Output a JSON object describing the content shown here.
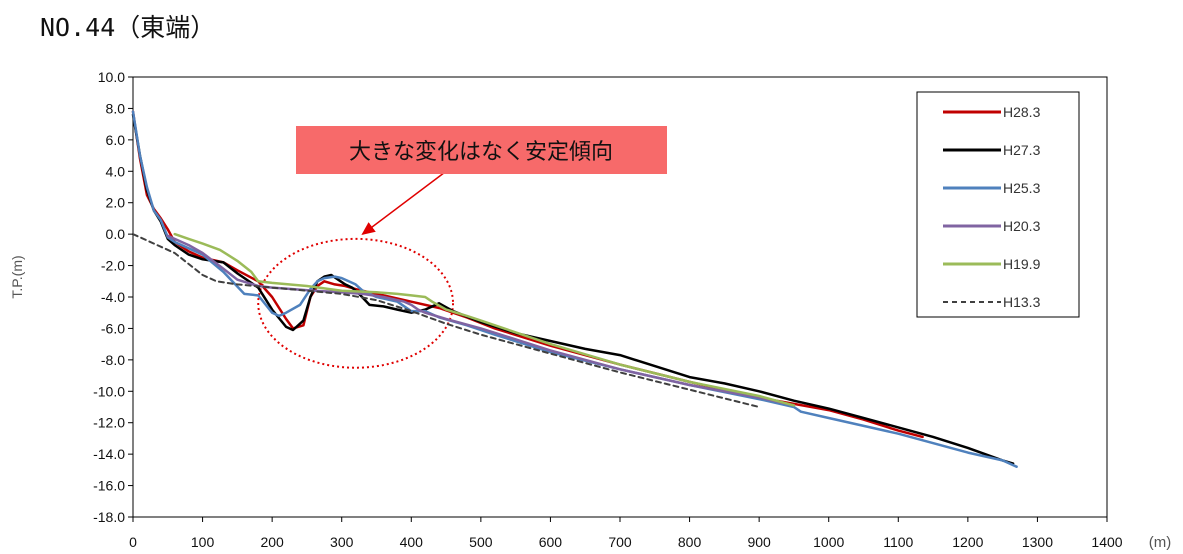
{
  "page_title": "NO.44（東端）",
  "chart_data": {
    "type": "line",
    "ylabel": "T.P.(m)",
    "xunit": "(m)",
    "xlim": [
      0,
      1400
    ],
    "ylim": [
      -18,
      10
    ],
    "xticks": [
      0,
      100,
      200,
      300,
      400,
      500,
      600,
      700,
      800,
      900,
      1000,
      1100,
      1200,
      1300,
      1400
    ],
    "xtick_labels": [
      "0",
      "100",
      "200",
      "300",
      "400",
      "500",
      "600",
      "700",
      "800",
      "900",
      "1000",
      "1100",
      "1200",
      "1300",
      "1400"
    ],
    "yticks": [
      10,
      8,
      6,
      4,
      2,
      0,
      -2,
      -4,
      -6,
      -8,
      -10,
      -12,
      -14,
      -16,
      -18
    ],
    "ytick_labels": [
      "10.0",
      "8.0",
      "6.0",
      "4.0",
      "2.0",
      "0.0",
      "-2.0",
      "-4.0",
      "-6.0",
      "-8.0",
      "-10.0",
      "-12.0",
      "-14.0",
      "-16.0",
      "-18.0"
    ],
    "grid": false,
    "legend_position": "top-right",
    "annotation": {
      "text": "大きな変化はなく安定傾向",
      "background": "#f76a6a",
      "ellipse_center": [
        320,
        -4.4
      ],
      "ellipse_radii": [
        140,
        4.1
      ],
      "arrow_from": [
        510,
        6.0
      ],
      "arrow_to": [
        330,
        0.0
      ]
    },
    "series": [
      {
        "name": "H28.3",
        "color": "#c00000",
        "dash": false,
        "x": [
          0,
          10,
          20,
          30,
          40,
          50,
          60,
          80,
          100,
          130,
          150,
          180,
          200,
          220,
          230,
          245,
          255,
          265,
          275,
          290,
          305,
          320,
          340,
          360,
          400,
          440,
          480,
          520,
          600,
          700,
          800,
          900,
          1000,
          1050,
          1100,
          1135
        ],
        "y": [
          7.8,
          4.8,
          2.5,
          1.6,
          1.0,
          0.3,
          -0.5,
          -1.1,
          -1.5,
          -1.8,
          -2.3,
          -3.0,
          -4.0,
          -5.4,
          -6.0,
          -5.8,
          -4.0,
          -3.3,
          -3.0,
          -3.2,
          -3.3,
          -3.5,
          -3.7,
          -3.9,
          -4.3,
          -4.7,
          -5.3,
          -6.0,
          -7.1,
          -8.3,
          -9.4,
          -10.4,
          -11.2,
          -11.8,
          -12.5,
          -12.9
        ]
      },
      {
        "name": "H27.3",
        "color": "#000000",
        "dash": false,
        "x": [
          0,
          10,
          20,
          30,
          40,
          50,
          60,
          80,
          100,
          130,
          150,
          180,
          200,
          220,
          230,
          245,
          255,
          265,
          275,
          285,
          295,
          305,
          315,
          325,
          340,
          360,
          380,
          400,
          420,
          440,
          460,
          500,
          550,
          600,
          650,
          700,
          750,
          800,
          850,
          900,
          950,
          1000,
          1050,
          1100,
          1150,
          1200,
          1250,
          1265
        ],
        "y": [
          7.6,
          5.0,
          2.8,
          1.5,
          0.8,
          -0.3,
          -0.7,
          -1.3,
          -1.6,
          -1.8,
          -2.5,
          -3.4,
          -4.8,
          -5.9,
          -6.1,
          -5.5,
          -4.0,
          -3.0,
          -2.7,
          -2.6,
          -2.9,
          -3.2,
          -3.4,
          -3.8,
          -4.5,
          -4.6,
          -4.8,
          -5.0,
          -4.8,
          -4.4,
          -4.9,
          -5.6,
          -6.3,
          -6.8,
          -7.3,
          -7.7,
          -8.4,
          -9.1,
          -9.5,
          -10.0,
          -10.6,
          -11.1,
          -11.7,
          -12.3,
          -12.9,
          -13.6,
          -14.4,
          -14.6
        ]
      },
      {
        "name": "H25.3",
        "color": "#4f81bd",
        "dash": false,
        "x": [
          0,
          10,
          20,
          30,
          40,
          50,
          60,
          80,
          100,
          130,
          160,
          180,
          200,
          210,
          220,
          240,
          255,
          265,
          275,
          290,
          300,
          310,
          320,
          330,
          350,
          380,
          400,
          420,
          440,
          480,
          520,
          600,
          700,
          800,
          900,
          950,
          960,
          1000,
          1100,
          1200,
          1250,
          1270
        ],
        "y": [
          7.8,
          5.0,
          3.0,
          1.5,
          0.9,
          -0.2,
          -0.5,
          -0.9,
          -1.3,
          -2.4,
          -3.8,
          -3.9,
          -5.0,
          -5.2,
          -5.0,
          -4.5,
          -3.5,
          -3.0,
          -2.8,
          -2.7,
          -2.8,
          -3.0,
          -3.2,
          -3.6,
          -4.0,
          -4.3,
          -4.9,
          -4.9,
          -5.3,
          -5.8,
          -6.4,
          -7.5,
          -8.6,
          -9.6,
          -10.5,
          -11.0,
          -11.3,
          -11.7,
          -12.7,
          -13.9,
          -14.4,
          -14.8
        ]
      },
      {
        "name": "H20.3",
        "color": "#8064a2",
        "dash": false,
        "x": [
          50,
          60,
          80,
          100,
          130,
          150,
          180,
          200,
          230,
          260,
          300,
          330,
          360,
          390,
          400,
          410,
          420,
          450,
          500,
          600,
          700,
          800,
          900,
          950
        ],
        "y": [
          -0.1,
          -0.3,
          -0.7,
          -1.2,
          -2.2,
          -2.9,
          -3.3,
          -3.4,
          -3.5,
          -3.6,
          -3.7,
          -3.8,
          -4.0,
          -4.3,
          -4.5,
          -4.8,
          -5.0,
          -5.4,
          -6.0,
          -7.4,
          -8.6,
          -9.6,
          -10.4,
          -10.9
        ]
      },
      {
        "name": "H19.9",
        "color": "#9bbb59",
        "dash": false,
        "x": [
          60,
          80,
          100,
          125,
          150,
          170,
          180,
          200,
          250,
          300,
          350,
          380,
          400,
          420,
          430,
          450,
          480,
          500,
          600,
          700,
          800,
          900,
          950
        ],
        "y": [
          0.0,
          -0.3,
          -0.6,
          -1.0,
          -1.7,
          -2.4,
          -3.0,
          -3.1,
          -3.3,
          -3.6,
          -3.7,
          -3.8,
          -3.9,
          -4.0,
          -4.3,
          -4.8,
          -5.2,
          -5.5,
          -7.0,
          -8.3,
          -9.4,
          -10.3,
          -10.9
        ]
      },
      {
        "name": "H13.3",
        "color": "#404040",
        "dash": true,
        "x": [
          0,
          30,
          60,
          80,
          100,
          120,
          150,
          200,
          250,
          300,
          350,
          400,
          450,
          500,
          600,
          700,
          800,
          900
        ],
        "y": [
          0.0,
          -0.6,
          -1.2,
          -1.9,
          -2.6,
          -3.0,
          -3.2,
          -3.4,
          -3.6,
          -3.8,
          -4.2,
          -4.9,
          -5.7,
          -6.4,
          -7.6,
          -8.8,
          -9.9,
          -11.0
        ]
      }
    ]
  }
}
